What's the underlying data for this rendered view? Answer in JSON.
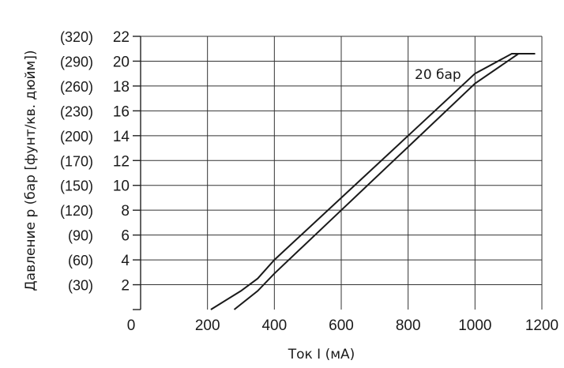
{
  "chart_data": {
    "type": "line",
    "xlabel": "Ток I (мА)",
    "ylabel": "Давление p (бар [фунт/кв. дюйм])",
    "xlim": [
      0,
      1200
    ],
    "ylim": [
      0,
      22
    ],
    "grid": true,
    "x_ticks": [
      "0",
      "200",
      "400",
      "600",
      "800",
      "1000",
      "1200"
    ],
    "x_tick_values": [
      0,
      200,
      400,
      600,
      800,
      1000,
      1200
    ],
    "y_ticks": [
      "2",
      "4",
      "6",
      "8",
      "10",
      "12",
      "14",
      "16",
      "18",
      "20",
      "22"
    ],
    "y_tick_values": [
      2,
      4,
      6,
      8,
      10,
      12,
      14,
      16,
      18,
      20,
      22
    ],
    "y2_ticks": [
      "(30)",
      "(60)",
      "(90)",
      "(120)",
      "(150)",
      "(170)",
      "(200)",
      "(230)",
      "(260)",
      "(290)",
      "(320)"
    ],
    "annotation": "20 бар",
    "series": [
      {
        "x": [
          210,
          240,
          300,
          350,
          400,
          600,
          800,
          1000,
          1110,
          1180
        ],
        "y": [
          0,
          0.5,
          1.5,
          2.5,
          4,
          9,
          14,
          19,
          20.6,
          20.6
        ]
      },
      {
        "x": [
          280,
          350,
          400,
          600,
          800,
          1000,
          1130
        ],
        "y": [
          0,
          1.5,
          2.9,
          8,
          13.1,
          18.2,
          20.6
        ]
      }
    ]
  }
}
